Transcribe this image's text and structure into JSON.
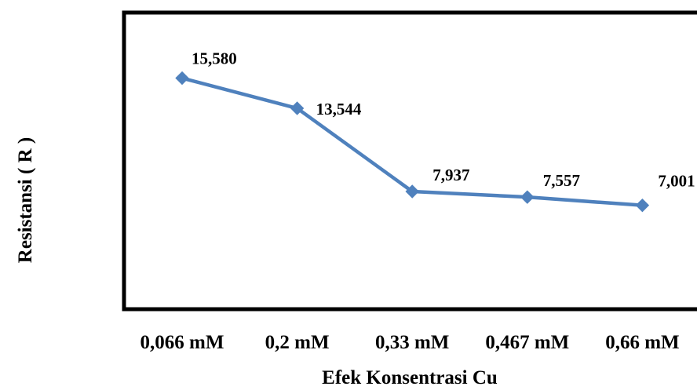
{
  "chart_data": {
    "type": "line",
    "categories": [
      "0,066 mM",
      "0,2 mM",
      "0,33 mM",
      "0,467 mM",
      "0,66 mM"
    ],
    "series": [
      {
        "values": [
          15.58,
          13.544,
          7.937,
          7.557,
          7.001
        ],
        "labels": [
          "15,580",
          "13,544",
          "7,937",
          "7,557",
          "7,001"
        ],
        "color": "#4f81bd",
        "marker": "diamond"
      }
    ],
    "xlabel": "Efek Konsentrasi Cu",
    "ylabel": "Resistansi ( R )",
    "ylim": [
      0,
      20
    ],
    "grid": false,
    "legend": "none",
    "axis_color": "#000000"
  }
}
